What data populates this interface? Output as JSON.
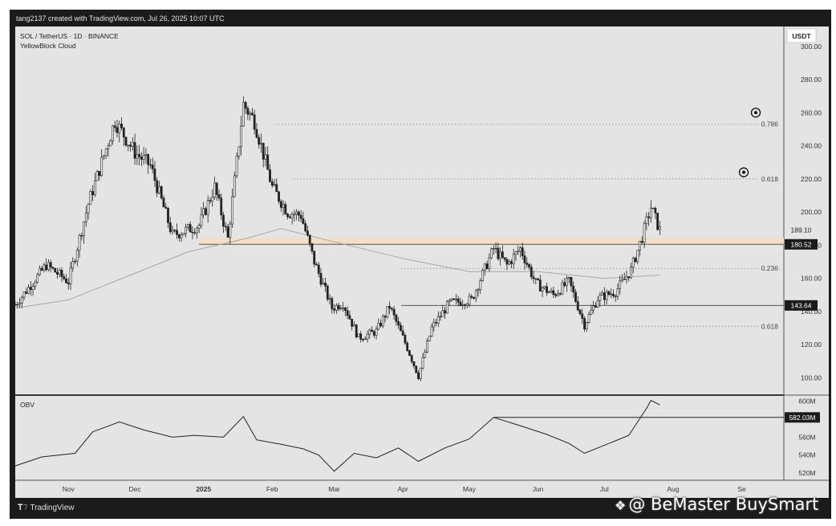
{
  "header": {
    "text": "tang2137 created with TradingView.com, Jul 26, 2025 10:07 UTC"
  },
  "symbol": {
    "title": "SOL / TetherUS · 1D · BINANCE",
    "indicator": "YellowBlock Cloud",
    "currency": "USDT"
  },
  "footer": {
    "logo_text": "TradingView"
  },
  "watermark": {
    "icon": "binance-diamond-icon",
    "text": "@ BeMaster BuySmart"
  },
  "colors": {
    "background": "#e4e4e4",
    "candles": "#222222",
    "zone": "#f3ddc2",
    "moving_average": "#a8a8a8"
  },
  "chart_data": [
    {
      "type": "candlestick",
      "title": "SOL / TetherUS · 1D · BINANCE",
      "y_axis": {
        "position": "right",
        "ylim": [
          90,
          312
        ],
        "ticks": [
          "100.00",
          "120.00",
          "140.00",
          "160.00",
          "180.00",
          "200.00",
          "220.00",
          "240.00",
          "260.00",
          "280.00",
          "300.00"
        ]
      },
      "x_axis": {
        "ticks": [
          "Nov",
          "Dec",
          "2025",
          "Feb",
          "Mar",
          "Apr",
          "May",
          "Jun",
          "Jul",
          "Aug",
          "Se"
        ]
      },
      "price_labels": [
        "189.10",
        "180.52",
        "143.64"
      ],
      "support_zone": {
        "low": 180.5,
        "high": 184.5
      },
      "fib_levels": [
        {
          "label": "0.786",
          "value": 253
        },
        {
          "label": "0.618",
          "value": 220
        },
        {
          "label": "0.236",
          "value": 166
        },
        {
          "label": "0.618",
          "value": 131
        }
      ],
      "horizontal_lines": [
        143.6,
        180.5
      ],
      "targets": [
        {
          "value": 260
        },
        {
          "value": 224
        }
      ],
      "close_path": [
        {
          "date": "2024-10-08",
          "close": 144
        },
        {
          "date": "2024-10-22",
          "close": 168
        },
        {
          "date": "2024-11-01",
          "close": 158
        },
        {
          "date": "2024-11-10",
          "close": 205
        },
        {
          "date": "2024-11-22",
          "close": 255
        },
        {
          "date": "2024-12-01",
          "close": 236
        },
        {
          "date": "2024-12-08",
          "close": 228
        },
        {
          "date": "2024-12-18",
          "close": 186
        },
        {
          "date": "2024-12-30",
          "close": 192
        },
        {
          "date": "2025-01-06",
          "close": 215
        },
        {
          "date": "2025-01-12",
          "close": 184
        },
        {
          "date": "2025-01-19",
          "close": 265
        },
        {
          "date": "2025-01-24",
          "close": 255
        },
        {
          "date": "2025-02-01",
          "close": 215
        },
        {
          "date": "2025-02-08",
          "close": 200
        },
        {
          "date": "2025-02-14",
          "close": 198
        },
        {
          "date": "2025-02-20",
          "close": 170
        },
        {
          "date": "2025-02-28",
          "close": 142
        },
        {
          "date": "2025-03-05",
          "close": 145
        },
        {
          "date": "2025-03-12",
          "close": 124
        },
        {
          "date": "2025-03-20",
          "close": 128
        },
        {
          "date": "2025-03-26",
          "close": 143
        },
        {
          "date": "2025-04-03",
          "close": 118
        },
        {
          "date": "2025-04-08",
          "close": 101
        },
        {
          "date": "2025-04-14",
          "close": 130
        },
        {
          "date": "2025-04-22",
          "close": 145
        },
        {
          "date": "2025-05-02",
          "close": 147
        },
        {
          "date": "2025-05-12",
          "close": 178
        },
        {
          "date": "2025-05-18",
          "close": 168
        },
        {
          "date": "2025-05-24",
          "close": 178
        },
        {
          "date": "2025-05-31",
          "close": 157
        },
        {
          "date": "2025-06-08",
          "close": 150
        },
        {
          "date": "2025-06-15",
          "close": 158
        },
        {
          "date": "2025-06-22",
          "close": 132
        },
        {
          "date": "2025-06-28",
          "close": 148
        },
        {
          "date": "2025-07-06",
          "close": 152
        },
        {
          "date": "2025-07-13",
          "close": 165
        },
        {
          "date": "2025-07-18",
          "close": 185
        },
        {
          "date": "2025-07-22",
          "close": 203
        },
        {
          "date": "2025-07-26",
          "close": 189
        }
      ],
      "moving_average": [
        {
          "date": "2024-10-08",
          "value": 142
        },
        {
          "date": "2024-11-01",
          "value": 147
        },
        {
          "date": "2024-12-01",
          "value": 163
        },
        {
          "date": "2024-12-25",
          "value": 176
        },
        {
          "date": "2025-01-20",
          "value": 184
        },
        {
          "date": "2025-02-05",
          "value": 190
        },
        {
          "date": "2025-03-01",
          "value": 182
        },
        {
          "date": "2025-04-01",
          "value": 172
        },
        {
          "date": "2025-05-01",
          "value": 164
        },
        {
          "date": "2025-06-01",
          "value": 164
        },
        {
          "date": "2025-07-01",
          "value": 160
        },
        {
          "date": "2025-07-26",
          "value": 162
        }
      ]
    },
    {
      "type": "line",
      "label": "OBV",
      "y_axis": {
        "position": "right",
        "ylim": [
          512,
          606
        ],
        "ticks": [
          "520M",
          "540M",
          "560M",
          "580M",
          "600M"
        ]
      },
      "price_labels": [
        "582.03M"
      ],
      "horizontal_lines": [
        582
      ],
      "series": [
        {
          "points": [
            {
              "date": "2024-10-08",
              "value": 528
            },
            {
              "date": "2024-10-20",
              "value": 538
            },
            {
              "date": "2024-11-04",
              "value": 542
            },
            {
              "date": "2024-11-12",
              "value": 566
            },
            {
              "date": "2024-11-24",
              "value": 577
            },
            {
              "date": "2024-12-05",
              "value": 568
            },
            {
              "date": "2024-12-18",
              "value": 560
            },
            {
              "date": "2024-12-28",
              "value": 562
            },
            {
              "date": "2025-01-10",
              "value": 560
            },
            {
              "date": "2025-01-19",
              "value": 583
            },
            {
              "date": "2025-01-25",
              "value": 557
            },
            {
              "date": "2025-02-05",
              "value": 552
            },
            {
              "date": "2025-02-15",
              "value": 547
            },
            {
              "date": "2025-02-22",
              "value": 540
            },
            {
              "date": "2025-03-01",
              "value": 522
            },
            {
              "date": "2025-03-10",
              "value": 542
            },
            {
              "date": "2025-03-20",
              "value": 537
            },
            {
              "date": "2025-03-30",
              "value": 548
            },
            {
              "date": "2025-04-08",
              "value": 533
            },
            {
              "date": "2025-04-20",
              "value": 548
            },
            {
              "date": "2025-05-01",
              "value": 558
            },
            {
              "date": "2025-05-12",
              "value": 582
            },
            {
              "date": "2025-05-25",
              "value": 572
            },
            {
              "date": "2025-06-05",
              "value": 563
            },
            {
              "date": "2025-06-15",
              "value": 553
            },
            {
              "date": "2025-06-22",
              "value": 542
            },
            {
              "date": "2025-07-02",
              "value": 552
            },
            {
              "date": "2025-07-12",
              "value": 562
            },
            {
              "date": "2025-07-20",
              "value": 592
            },
            {
              "date": "2025-07-22",
              "value": 601
            },
            {
              "date": "2025-07-26",
              "value": 596
            }
          ]
        }
      ],
      "target_lines": [
        {
          "from": "2025-05-12",
          "value": 582
        }
      ]
    }
  ]
}
